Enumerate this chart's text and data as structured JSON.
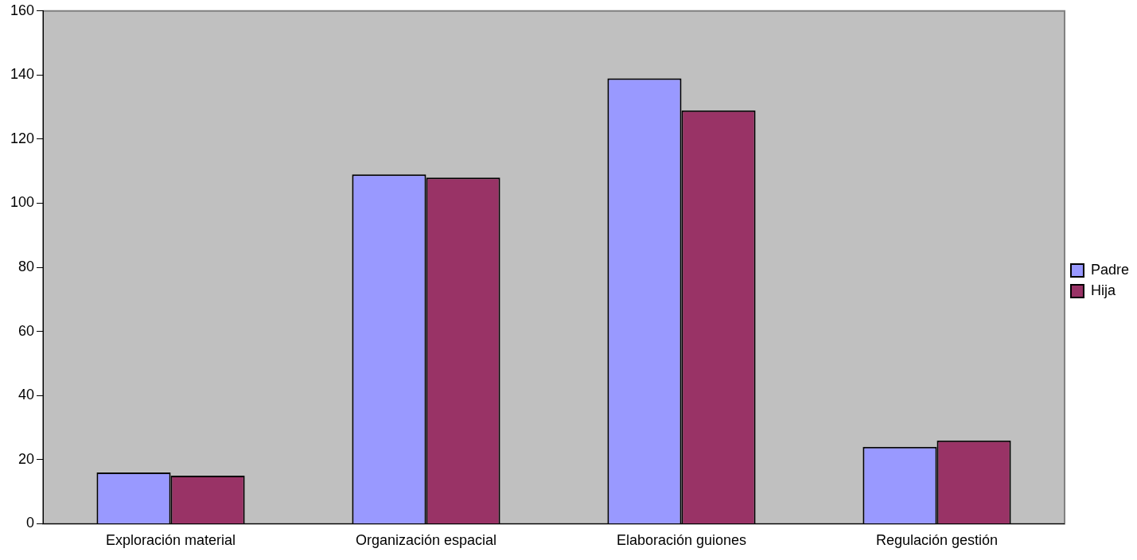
{
  "chart_data": {
    "type": "bar",
    "categories": [
      "Exploración material",
      "Organización espacial",
      "Elaboración guiones",
      "Regulación gestión"
    ],
    "series": [
      {
        "name": "Padre",
        "color": "#9999ff",
        "values": [
          16,
          109,
          139,
          24
        ]
      },
      {
        "name": "Hija",
        "color": "#993366",
        "values": [
          15,
          108,
          129,
          26
        ]
      }
    ],
    "ylim": [
      0,
      160
    ],
    "yticks": [
      0,
      20,
      40,
      60,
      80,
      100,
      120,
      140,
      160
    ],
    "grid": false,
    "legend": "right"
  }
}
